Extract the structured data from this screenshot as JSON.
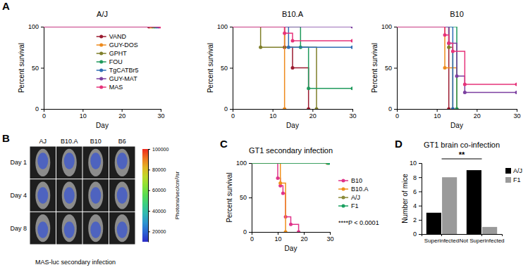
{
  "chart_data": [
    {
      "panel": "A",
      "type": "line",
      "title": "A/J",
      "x_label": "Day",
      "y_label": "Percent survival",
      "xlim": [
        0,
        30
      ],
      "ylim": [
        0,
        100
      ],
      "xticks": [
        0,
        10,
        20,
        30
      ],
      "yticks": [
        0,
        50,
        100
      ],
      "legend": "center",
      "marker": "circle",
      "line_style": "step",
      "series": [
        {
          "name": "VAND",
          "color": "#9b1b30",
          "x": [
            0,
            27
          ],
          "values": [
            100,
            100
          ]
        },
        {
          "name": "GUY-DOS",
          "color": "#ee8a1c",
          "x": [
            0,
            27.5
          ],
          "values": [
            100,
            100
          ]
        },
        {
          "name": "GPHT",
          "color": "#7f7f2a",
          "x": [
            0,
            28
          ],
          "values": [
            100,
            100
          ]
        },
        {
          "name": "FOU",
          "color": "#1f9a5c",
          "x": [
            0,
            28.5
          ],
          "values": [
            100,
            100
          ]
        },
        {
          "name": "TgCATBr5",
          "color": "#2f6db5",
          "x": [
            0,
            29
          ],
          "values": [
            100,
            100
          ]
        },
        {
          "name": "GUY-MAT",
          "color": "#7b3fa0",
          "x": [
            0,
            29.5
          ],
          "values": [
            100,
            100
          ]
        },
        {
          "name": "MAS",
          "color": "#e6337a",
          "x": [
            0,
            30
          ],
          "values": [
            100,
            100
          ]
        }
      ]
    },
    {
      "type": "line",
      "title": "B10.A",
      "x_label": "Day",
      "y_label": "Percent survival",
      "xlim": [
        0,
        30
      ],
      "ylim": [
        0,
        100
      ],
      "xticks": [
        0,
        10,
        20,
        30
      ],
      "yticks": [
        0,
        50,
        100
      ],
      "marker": "circle",
      "line_style": "step",
      "series": [
        {
          "color": "#9b1b30",
          "x": [
            0,
            13,
            15,
            19
          ],
          "values": [
            100,
            75,
            50,
            0
          ]
        },
        {
          "color": "#ee8a1c",
          "x": [
            0,
            13
          ],
          "values": [
            100,
            0
          ]
        },
        {
          "color": "#7f7f2a",
          "x": [
            0,
            7,
            21
          ],
          "values": [
            100,
            75,
            0
          ]
        },
        {
          "color": "#1f9a5c",
          "x": [
            0,
            17,
            19,
            30
          ],
          "values": [
            100,
            75,
            25,
            25
          ]
        },
        {
          "color": "#2f6db5",
          "x": [
            0,
            14,
            30
          ],
          "values": [
            100,
            75,
            75
          ]
        },
        {
          "color": "#7b3fa0",
          "x": [
            0,
            30
          ],
          "values": [
            100,
            100
          ]
        },
        {
          "color": "#e6337a",
          "x": [
            0,
            13,
            15,
            30
          ],
          "values": [
            100,
            92,
            83,
            83
          ]
        }
      ]
    },
    {
      "type": "line",
      "title": "B10",
      "x_label": "Day",
      "y_label": "Percent survival",
      "xlim": [
        0,
        30
      ],
      "ylim": [
        0,
        100
      ],
      "xticks": [
        0,
        10,
        20,
        30
      ],
      "yticks": [
        0,
        50,
        100
      ],
      "marker": "circle",
      "line_style": "step",
      "series": [
        {
          "color": "#9b1b30",
          "x": [
            0,
            13
          ],
          "values": [
            100,
            0
          ]
        },
        {
          "color": "#ee8a1c",
          "x": [
            0,
            12,
            15
          ],
          "values": [
            100,
            50,
            0
          ]
        },
        {
          "color": "#7f7f2a",
          "x": [
            0,
            13,
            14
          ],
          "values": [
            100,
            75,
            0
          ]
        },
        {
          "color": "#1f9a5c",
          "x": [
            0,
            15
          ],
          "values": [
            100,
            0
          ]
        },
        {
          "color": "#2f6db5",
          "x": [
            0,
            14
          ],
          "values": [
            100,
            0
          ]
        },
        {
          "color": "#7b3fa0",
          "x": [
            0,
            13,
            15,
            17,
            30
          ],
          "values": [
            100,
            80,
            40,
            20,
            20
          ]
        },
        {
          "color": "#e6337a",
          "x": [
            0,
            12,
            13,
            14,
            17,
            30
          ],
          "values": [
            100,
            90,
            80,
            70,
            30,
            30
          ]
        }
      ]
    },
    {
      "panel": "B",
      "type": "image",
      "column_labels": [
        "AJ",
        "B10.A",
        "B10",
        "B6"
      ],
      "row_labels": [
        "Day 1",
        "Day 4",
        "Day 8"
      ],
      "caption": "MAS-luc secondary infection",
      "colorbar": {
        "label": "Photons/sec/cm²/sr",
        "range": [
          10000,
          100000
        ],
        "ticks": [
          20000,
          40000,
          60000,
          80000,
          100000
        ]
      }
    },
    {
      "panel": "C",
      "type": "line",
      "title": "GT1 secondary infection",
      "x_label": "Day",
      "y_label": "Percent survival",
      "xlim": [
        0,
        30
      ],
      "ylim": [
        0,
        100
      ],
      "xticks": [
        0,
        10,
        20,
        30
      ],
      "yticks": [
        0,
        50,
        100
      ],
      "legend": "right",
      "marker": "circle",
      "line_style": "step",
      "annotations": [
        "****P < 0.0001"
      ],
      "series": [
        {
          "name": "B10",
          "color": "#e0338a",
          "x": [
            0,
            10,
            11,
            12,
            13,
            15,
            18
          ],
          "values": [
            100,
            78,
            67,
            56,
            22,
            11,
            0
          ]
        },
        {
          "name": "B10.A",
          "color": "#f0901a",
          "x": [
            0,
            11,
            13
          ],
          "values": [
            100,
            71,
            0
          ]
        },
        {
          "name": "A/J",
          "color": "#8a8a3a",
          "x": [
            0,
            29
          ],
          "values": [
            100,
            100
          ]
        },
        {
          "name": "F1",
          "color": "#1aa060",
          "x": [
            0,
            29.5
          ],
          "values": [
            100,
            100
          ]
        }
      ]
    },
    {
      "panel": "D",
      "type": "bar",
      "title": "GT1 brain co-infection",
      "y_label": "Number of mice",
      "categories": [
        "Superinfected",
        "Not Superinfected"
      ],
      "ylim": [
        0,
        10
      ],
      "yticks": [
        0,
        2,
        4,
        6,
        8,
        10
      ],
      "legend": "right",
      "annotations": [
        "**"
      ],
      "series": [
        {
          "name": "A/J",
          "color": "#000000",
          "values": [
            3,
            9
          ]
        },
        {
          "name": "F1",
          "color": "#9a9a9a",
          "values": [
            8,
            1
          ]
        }
      ]
    }
  ]
}
